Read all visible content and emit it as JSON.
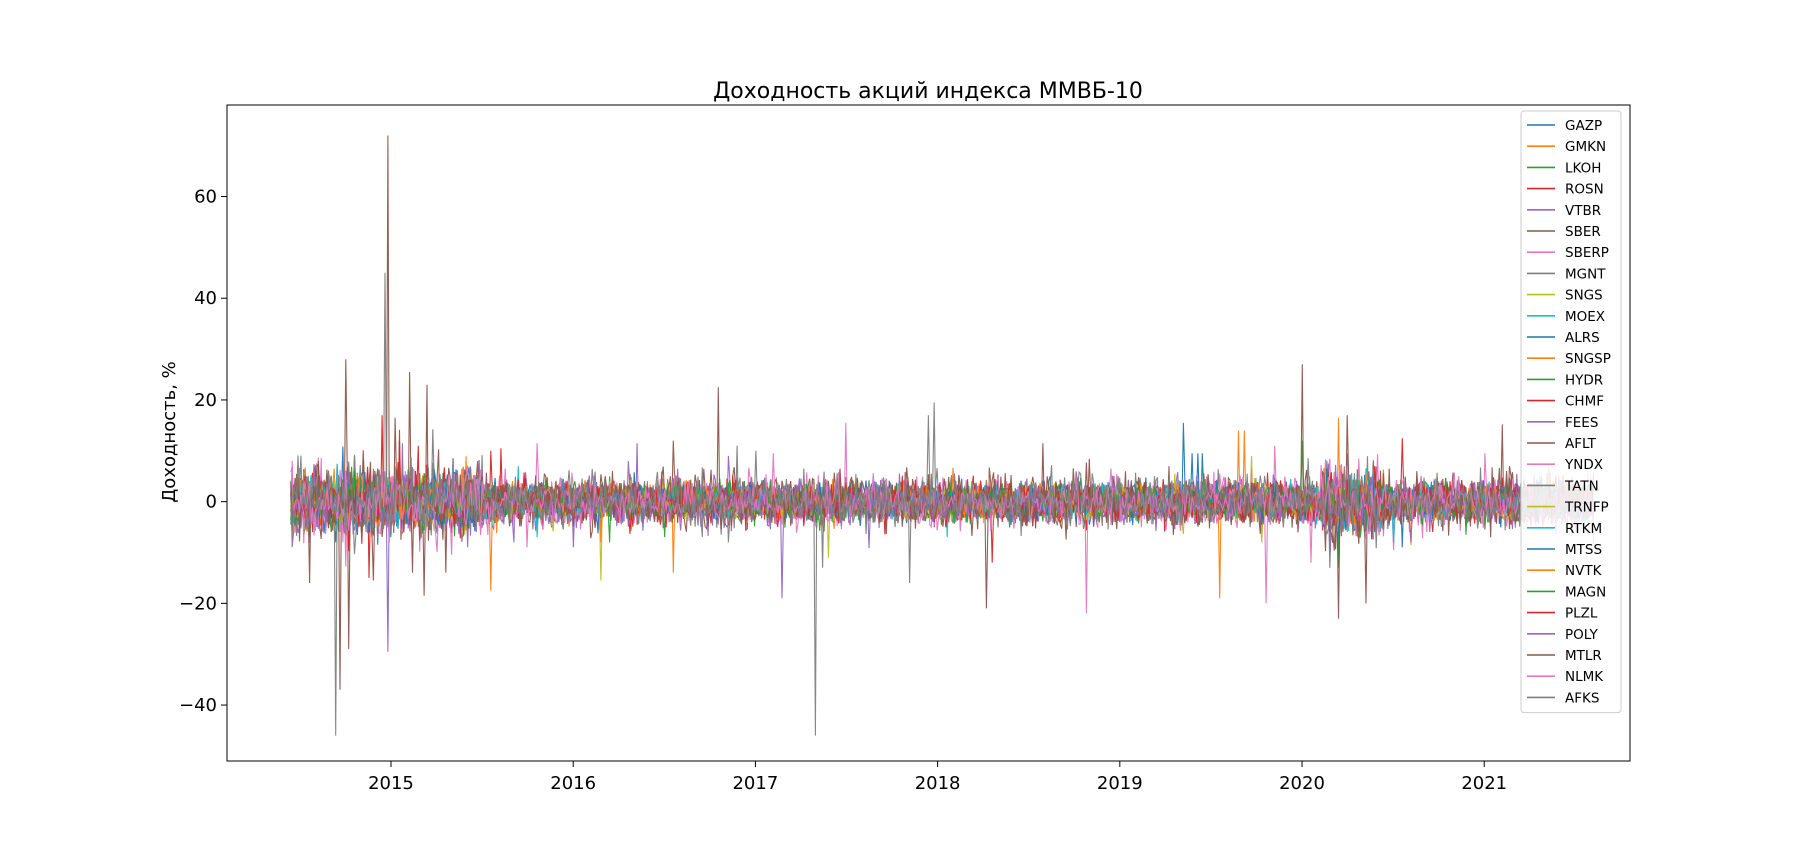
{
  "chart_data": {
    "type": "line",
    "title": "Доходность акций индекса ММВБ-10",
    "xlabel": "",
    "ylabel": "Доходность, %",
    "x_range": [
      2014.1,
      2021.8
    ],
    "ylim": [
      -51,
      78
    ],
    "x_ticks": [
      2015,
      2016,
      2017,
      2018,
      2019,
      2020,
      2021
    ],
    "x_tick_labels": [
      "2015",
      "2016",
      "2017",
      "2018",
      "2019",
      "2020",
      "2021"
    ],
    "y_ticks": [
      -40,
      -20,
      0,
      20,
      40,
      60
    ],
    "y_tick_labels": [
      "−40",
      "−20",
      "0",
      "20",
      "40",
      "60"
    ],
    "data_x_range": [
      2014.45,
      2021.6
    ],
    "grid": false,
    "legend_position": "top-right",
    "series": [
      {
        "name": "GAZP",
        "color": "#1f77b4",
        "noise": 1.9,
        "spikes": [
          [
            2014.7,
            -8
          ],
          [
            2019.35,
            15.5
          ],
          [
            2020.2,
            -11
          ],
          [
            2019.45,
            9.5
          ]
        ]
      },
      {
        "name": "GMKN",
        "color": "#ff7f0e",
        "noise": 1.7,
        "spikes": [
          [
            2015.55,
            -17.5
          ],
          [
            2016.55,
            -14
          ],
          [
            2019.55,
            -19
          ],
          [
            2019.65,
            14
          ],
          [
            2020.2,
            16.5
          ]
        ]
      },
      {
        "name": "LKOH",
        "color": "#2ca02c",
        "noise": 1.8,
        "spikes": [
          [
            2020.0,
            12
          ],
          [
            2020.2,
            -13
          ],
          [
            2014.8,
            9
          ]
        ]
      },
      {
        "name": "ROSN",
        "color": "#d62728",
        "noise": 2.0,
        "spikes": [
          [
            2014.95,
            17
          ],
          [
            2014.88,
            -15
          ],
          [
            2015.15,
            11
          ],
          [
            2015.55,
            10
          ],
          [
            2018.3,
            -12
          ]
        ]
      },
      {
        "name": "VTBR",
        "color": "#9467bd",
        "noise": 2.4,
        "spikes": [
          [
            2014.98,
            -29.5
          ],
          [
            2016.35,
            11.5
          ],
          [
            2017.15,
            -19
          ],
          [
            2016.85,
            9
          ],
          [
            2020.25,
            9.5
          ]
        ]
      },
      {
        "name": "SBER",
        "color": "#8c564b",
        "noise": 2.6,
        "spikes": [
          [
            2014.72,
            -37
          ],
          [
            2014.75,
            28
          ],
          [
            2014.77,
            -29
          ],
          [
            2014.98,
            72
          ],
          [
            2015.1,
            25.5
          ],
          [
            2015.2,
            23
          ],
          [
            2015.18,
            -18.5
          ],
          [
            2016.8,
            22.5
          ],
          [
            2018.27,
            -21
          ],
          [
            2020.0,
            27
          ],
          [
            2020.2,
            -23
          ],
          [
            2020.25,
            17
          ],
          [
            2020.35,
            -20
          ]
        ]
      },
      {
        "name": "SBERP",
        "color": "#e377c2",
        "noise": 2.4,
        "spikes": [
          [
            2015.8,
            11.5
          ],
          [
            2017.5,
            15.5
          ],
          [
            2018.82,
            -22
          ],
          [
            2019.8,
            -20
          ],
          [
            2019.85,
            11
          ],
          [
            2020.05,
            -12
          ]
        ]
      },
      {
        "name": "MGNT",
        "color": "#7f7f7f",
        "noise": 2.4,
        "spikes": [
          [
            2014.7,
            -46
          ],
          [
            2014.97,
            45
          ],
          [
            2017.33,
            -46
          ],
          [
            2017.98,
            19.5
          ],
          [
            2017.95,
            17
          ],
          [
            2017.85,
            -16
          ],
          [
            2017.37,
            -13
          ]
        ]
      },
      {
        "name": "SNGS",
        "color": "#bcbd22",
        "noise": 1.6,
        "spikes": [
          [
            2016.15,
            -15.5
          ],
          [
            2017.4,
            -11
          ],
          [
            2019.72,
            9
          ],
          [
            2019.78,
            -8
          ]
        ]
      },
      {
        "name": "MOEX",
        "color": "#17becf",
        "noise": 1.6,
        "spikes": [
          [
            2015.7,
            7
          ],
          [
            2018.05,
            -7
          ],
          [
            2020.5,
            -8.5
          ]
        ]
      },
      {
        "name": "ALRS",
        "color": "#1f77b4",
        "noise": 1.8,
        "spikes": [
          [
            2019.4,
            9.5
          ],
          [
            2020.55,
            -9
          ]
        ]
      },
      {
        "name": "SNGSP",
        "color": "#ff7f0e",
        "noise": 1.6,
        "spikes": [
          [
            2019.68,
            14
          ],
          [
            2016.15,
            -8
          ],
          [
            2020.6,
            -8.5
          ]
        ]
      },
      {
        "name": "HYDR",
        "color": "#2ca02c",
        "noise": 1.5,
        "spikes": [
          [
            2016.5,
            -7
          ],
          [
            2020.9,
            -6.5
          ]
        ]
      },
      {
        "name": "CHMF",
        "color": "#d62728",
        "noise": 1.7,
        "spikes": [
          [
            2020.55,
            12.5
          ],
          [
            2015.6,
            10.5
          ]
        ]
      },
      {
        "name": "FEES",
        "color": "#9467bd",
        "noise": 1.9,
        "spikes": [
          [
            2020.6,
            -8
          ],
          [
            2016.0,
            -9
          ]
        ]
      },
      {
        "name": "AFLT",
        "color": "#8c564b",
        "noise": 2.0,
        "spikes": [
          [
            2014.55,
            -16
          ],
          [
            2014.6,
            8
          ],
          [
            2016.55,
            12
          ],
          [
            2018.58,
            11.5
          ],
          [
            2021.1,
            15.2
          ]
        ]
      },
      {
        "name": "YNDX",
        "color": "#e377c2",
        "noise": 2.3,
        "spikes": [
          [
            2020.5,
            -9.5
          ],
          [
            2021.0,
            9.5
          ],
          [
            2015.75,
            -9
          ]
        ]
      },
      {
        "name": "TATN",
        "color": "#7f7f7f",
        "noise": 1.8,
        "spikes": [
          [
            2016.9,
            11
          ],
          [
            2020.15,
            -13
          ]
        ]
      },
      {
        "name": "TRNFP",
        "color": "#bcbd22",
        "noise": 1.4,
        "spikes": [
          [
            2019.3,
            5.5
          ]
        ]
      },
      {
        "name": "RTKM",
        "color": "#17becf",
        "noise": 1.5,
        "spikes": [
          [
            2015.8,
            -7
          ],
          [
            2020.5,
            -8
          ]
        ]
      },
      {
        "name": "MTSS",
        "color": "#1f77b4",
        "noise": 1.5,
        "spikes": [
          [
            2019.43,
            9.5
          ],
          [
            2015.0,
            -7
          ]
        ]
      },
      {
        "name": "NVTK",
        "color": "#ff7f0e",
        "noise": 1.6,
        "spikes": [
          [
            2021.35,
            7
          ]
        ]
      },
      {
        "name": "MAGN",
        "color": "#2ca02c",
        "noise": 1.7,
        "spikes": [
          [
            2016.2,
            -8
          ]
        ]
      },
      {
        "name": "PLZL",
        "color": "#d62728",
        "noise": 1.8,
        "spikes": [
          [
            2015.05,
            12
          ]
        ]
      },
      {
        "name": "POLY",
        "color": "#9467bd",
        "noise": 1.8,
        "spikes": [
          [
            2016.3,
            8
          ],
          [
            2020.15,
            -10
          ]
        ]
      },
      {
        "name": "MTLR",
        "color": "#8c564b",
        "noise": 2.4,
        "spikes": [
          [
            2015.02,
            16.5
          ],
          [
            2014.9,
            -15.5
          ],
          [
            2015.12,
            -14
          ]
        ]
      },
      {
        "name": "NLMK",
        "color": "#e377c2",
        "noise": 1.7,
        "spikes": [
          [
            2017.1,
            9.5
          ]
        ]
      },
      {
        "name": "AFKS",
        "color": "#7f7f7f",
        "noise": 2.3,
        "spikes": [
          [
            2017.0,
            10
          ],
          [
            2016.85,
            -8
          ]
        ]
      }
    ]
  }
}
